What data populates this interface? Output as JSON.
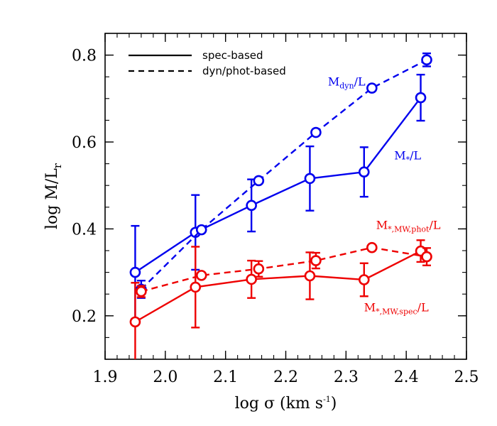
{
  "chart_data": {
    "type": "line",
    "title": "",
    "xlabel": "log σ (km s",
    "xlabel_sup": "-1",
    "xlabel_tail": ")",
    "ylabel": "log M/L",
    "ylabel_sub": "r",
    "xlim": [
      1.9,
      2.5
    ],
    "ylim": [
      0.1,
      0.85
    ],
    "x_ticks": [
      "1.9",
      "2.0",
      "2.1",
      "2.2",
      "2.3",
      "2.4",
      "2.5"
    ],
    "y_ticks": [
      "0.2",
      "0.4",
      "0.6",
      "0.8"
    ],
    "grid": false,
    "legend_position": "top-left",
    "legend": [
      {
        "label": "spec-based",
        "style": "solid"
      },
      {
        "label": "dyn/phot-based",
        "style": "dashed"
      }
    ],
    "series": [
      {
        "id": "mstar_spec_blue",
        "style": "solid",
        "color": "#0000ee",
        "x": [
          1.95,
          2.05,
          2.143,
          2.24,
          2.33,
          2.424
        ],
        "y": [
          0.3,
          0.392,
          0.454,
          0.516,
          0.531,
          0.702
        ],
        "err": [
          0.107,
          0.086,
          0.06,
          0.074,
          0.057,
          0.053
        ]
      },
      {
        "id": "mdyn_phot_blue",
        "style": "dashed",
        "color": "#0000ee",
        "x": [
          1.96,
          2.06,
          2.155,
          2.25,
          2.343,
          2.434
        ],
        "y": [
          0.261,
          0.398,
          0.511,
          0.622,
          0.724,
          0.789
        ],
        "err": [
          0.02,
          0.0,
          0.0,
          0.0,
          0.0,
          0.015
        ]
      },
      {
        "id": "mmw_spec_red",
        "style": "solid",
        "color": "#ee0000",
        "x": [
          1.95,
          2.05,
          2.143,
          2.24,
          2.33,
          2.424
        ],
        "y": [
          0.186,
          0.266,
          0.284,
          0.292,
          0.283,
          0.349
        ],
        "err": [
          0.09,
          0.093,
          0.043,
          0.054,
          0.038,
          0.025
        ]
      },
      {
        "id": "mmw_phot_red",
        "style": "dashed",
        "color": "#ee0000",
        "x": [
          1.96,
          2.06,
          2.155,
          2.25,
          2.343,
          2.434
        ],
        "y": [
          0.256,
          0.293,
          0.308,
          0.327,
          0.357,
          0.336
        ],
        "err": [
          0.013,
          0.0,
          0.018,
          0.018,
          0.0,
          0.02
        ]
      }
    ],
    "annotations": [
      {
        "main": "M",
        "sub": "dyn",
        "tail": "/L",
        "color": "#0000ee",
        "x": 2.27,
        "y": 0.73
      },
      {
        "main": "M",
        "sub": "*",
        "tail": "/L",
        "color": "#0000ee",
        "x": 2.38,
        "y": 0.56
      },
      {
        "main": "M",
        "sub": "*,MW,phot",
        "tail": "/L",
        "color": "#ee0000",
        "x": 2.35,
        "y": 0.4
      },
      {
        "main": "M",
        "sub": "*,MW,spec",
        "tail": "/L",
        "color": "#ee0000",
        "x": 2.33,
        "y": 0.21
      }
    ]
  }
}
